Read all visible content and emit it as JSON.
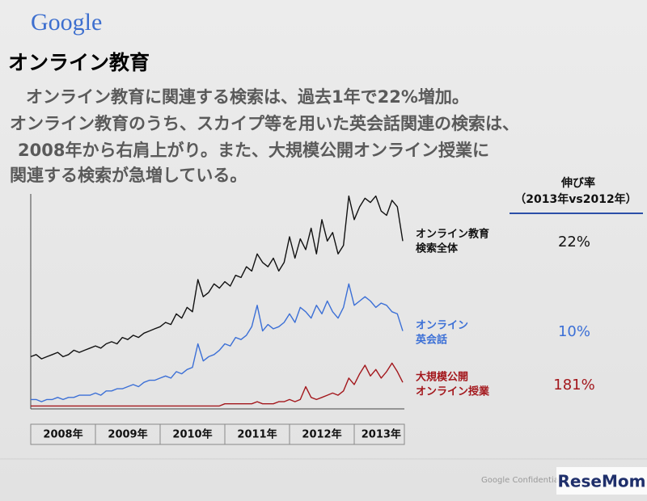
{
  "header": {
    "logo": "Google",
    "title": "オンライン教育",
    "lines": [
      "オンライン教育に関連する検索は、過去1年で22%増加。",
      "オンライン教育のうち、スカイプ等を用いた英会話関連の検索は、",
      "2008年から右肩上がり。また、大規模公開オンライン授業に",
      "関連する検索が急増している。"
    ]
  },
  "chart_data": {
    "type": "line",
    "ylim": [
      0,
      100
    ],
    "growth_title": "伸び率",
    "growth_subtitle": "（2013年vs2012年）",
    "categories": [
      null,
      null,
      null,
      null,
      null,
      null,
      "2008年",
      null,
      null,
      null,
      null,
      null,
      null,
      null,
      null,
      null,
      null,
      null,
      "2009年",
      null,
      null,
      null,
      null,
      null,
      null,
      null,
      null,
      null,
      null,
      null,
      "2010年",
      null,
      null,
      null,
      null,
      null,
      null,
      null,
      null,
      null,
      null,
      null,
      "2011年",
      null,
      null,
      null,
      null,
      null,
      null,
      null,
      null,
      null,
      null,
      null,
      "2012年",
      null,
      null,
      null,
      null,
      null,
      null,
      null,
      null,
      null,
      null,
      "2013年",
      null,
      null,
      null,
      null
    ],
    "series": [
      {
        "name": [
          "オンライン教育",
          "検索全体"
        ],
        "color": "#111111",
        "growth_rate": 22,
        "growth_rate_label": "22%",
        "values": [
          24,
          25,
          23,
          24,
          25,
          26,
          24,
          25,
          27,
          26,
          27,
          28,
          29,
          28,
          30,
          31,
          30,
          33,
          32,
          34,
          33,
          35,
          36,
          37,
          38,
          40,
          39,
          44,
          42,
          47,
          45,
          60,
          52,
          54,
          58,
          56,
          59,
          57,
          62,
          61,
          66,
          64,
          72,
          68,
          66,
          70,
          64,
          68,
          80,
          70,
          79,
          74,
          84,
          72,
          88,
          78,
          82,
          72,
          76,
          99,
          88,
          94,
          98,
          96,
          99,
          92,
          90,
          97,
          94,
          78
        ]
      },
      {
        "name": [
          "オンライン",
          "英会話"
        ],
        "color": "#3b6fd6",
        "growth_rate": 10,
        "growth_rate_label": "10%",
        "values": [
          4,
          4,
          3,
          4,
          4,
          5,
          4,
          5,
          5,
          6,
          6,
          6,
          7,
          6,
          8,
          8,
          9,
          9,
          10,
          11,
          10,
          12,
          13,
          13,
          14,
          15,
          14,
          17,
          16,
          18,
          19,
          30,
          22,
          24,
          25,
          27,
          30,
          29,
          33,
          32,
          34,
          38,
          48,
          36,
          39,
          37,
          38,
          40,
          44,
          40,
          47,
          45,
          42,
          48,
          44,
          50,
          45,
          42,
          47,
          58,
          48,
          50,
          52,
          50,
          47,
          49,
          48,
          45,
          44,
          36
        ]
      },
      {
        "name": [
          "大規模公開",
          "オンライン授業"
        ],
        "color": "#a3171c",
        "growth_rate": 181,
        "growth_rate_label": "181%",
        "values": [
          1,
          1,
          1,
          1,
          1,
          1,
          1,
          1,
          1,
          1,
          1,
          1,
          1,
          1,
          1,
          1,
          1,
          1,
          1,
          1,
          1,
          1,
          1,
          1,
          1,
          1,
          1,
          1,
          1,
          1,
          1,
          1,
          1,
          1,
          1,
          1,
          2,
          2,
          2,
          2,
          2,
          2,
          3,
          2,
          2,
          2,
          3,
          3,
          4,
          3,
          4,
          10,
          5,
          4,
          5,
          6,
          7,
          6,
          8,
          14,
          11,
          16,
          20,
          15,
          18,
          14,
          17,
          21,
          17,
          12
        ]
      }
    ]
  },
  "footer": {
    "confidential": "Google Confidential a",
    "watermark": "ReseMom"
  }
}
